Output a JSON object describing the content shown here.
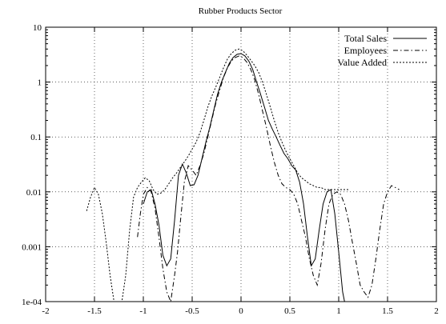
{
  "chart_data": {
    "type": "line",
    "title": "Rubber Products Sector",
    "xlabel": "",
    "ylabel": "",
    "xlim": [
      -2,
      2
    ],
    "ylim": [
      0.0001,
      10
    ],
    "yscale": "log",
    "grid": true,
    "legend_position": "top-right",
    "x_ticks": [
      -2,
      -1.5,
      -1,
      -0.5,
      0,
      0.5,
      1,
      1.5,
      2
    ],
    "x_tick_labels": [
      "-2",
      "-1.5",
      "-1",
      "-0.5",
      "0",
      "0.5",
      "1",
      "1.5",
      "2"
    ],
    "y_ticks": [
      0.0001,
      0.001,
      0.01,
      0.1,
      1,
      10
    ],
    "y_tick_labels": [
      "1e-04",
      "0.001",
      "0.01",
      "0.1",
      "1",
      "10"
    ],
    "series": [
      {
        "name": "Total Sales",
        "style": "solid",
        "x": [
          -1.0,
          -0.96,
          -0.92,
          -0.88,
          -0.84,
          -0.8,
          -0.76,
          -0.72,
          -0.68,
          -0.64,
          -0.6,
          -0.56,
          -0.52,
          -0.48,
          -0.44,
          -0.4,
          -0.36,
          -0.32,
          -0.28,
          -0.24,
          -0.2,
          -0.16,
          -0.12,
          -0.08,
          -0.04,
          0.0,
          0.04,
          0.08,
          0.12,
          0.16,
          0.2,
          0.24,
          0.28,
          0.32,
          0.36,
          0.4,
          0.44,
          0.48,
          0.52,
          0.56,
          0.6,
          0.64,
          0.68,
          0.72,
          0.76,
          0.8,
          0.84,
          0.88,
          0.92,
          0.96,
          1.0,
          1.04,
          1.06
        ],
        "y": [
          0.006,
          0.01,
          0.011,
          0.006,
          0.0025,
          0.0007,
          0.00045,
          0.0006,
          0.003,
          0.02,
          0.032,
          0.022,
          0.013,
          0.0135,
          0.02,
          0.04,
          0.08,
          0.15,
          0.3,
          0.6,
          1.0,
          1.5,
          2.2,
          2.8,
          3.2,
          3.3,
          3.0,
          2.4,
          1.7,
          1.0,
          0.6,
          0.35,
          0.2,
          0.14,
          0.1,
          0.07,
          0.05,
          0.04,
          0.03,
          0.025,
          0.015,
          0.006,
          0.0015,
          0.00045,
          0.0006,
          0.002,
          0.006,
          0.01,
          0.011,
          0.004,
          0.0008,
          0.00015,
          0.0001
        ]
      },
      {
        "name": "Employees",
        "style": "dashdot",
        "x": [
          -1.06,
          -1.03,
          -1.0,
          -0.96,
          -0.92,
          -0.88,
          -0.84,
          -0.8,
          -0.76,
          -0.72,
          -0.68,
          -0.65,
          -0.62,
          -0.58,
          -0.54,
          -0.5,
          -0.46,
          -0.42,
          -0.38,
          -0.34,
          -0.3,
          -0.26,
          -0.22,
          -0.18,
          -0.14,
          -0.1,
          -0.06,
          -0.02,
          0.02,
          0.06,
          0.1,
          0.14,
          0.18,
          0.22,
          0.26,
          0.3,
          0.34,
          0.38,
          0.42,
          0.46,
          0.5,
          0.54,
          0.58,
          0.62,
          0.66,
          0.7,
          0.74,
          0.78,
          0.82,
          0.86,
          0.9,
          0.94,
          0.98,
          1.02,
          1.06,
          1.1,
          1.14,
          1.18,
          1.22,
          1.26,
          1.3,
          1.34,
          1.38,
          1.42,
          1.46,
          1.5,
          1.54,
          1.58,
          1.62
        ],
        "y": [
          0.0015,
          0.004,
          0.009,
          0.012,
          0.01,
          0.005,
          0.0015,
          0.0004,
          0.00015,
          0.0001,
          0.0003,
          0.0008,
          0.003,
          0.015,
          0.03,
          0.025,
          0.02,
          0.03,
          0.05,
          0.1,
          0.2,
          0.4,
          0.7,
          1.2,
          1.8,
          2.4,
          2.8,
          3.0,
          2.8,
          2.3,
          1.7,
          1.1,
          0.6,
          0.3,
          0.15,
          0.07,
          0.035,
          0.02,
          0.014,
          0.012,
          0.011,
          0.009,
          0.006,
          0.003,
          0.0015,
          0.0006,
          0.0003,
          0.0002,
          0.0005,
          0.002,
          0.006,
          0.009,
          0.01,
          0.009,
          0.006,
          0.003,
          0.0012,
          0.0005,
          0.0002,
          0.00015,
          0.00012,
          0.0002,
          0.0006,
          0.002,
          0.006,
          0.01,
          0.013,
          0.012,
          0.011
        ]
      },
      {
        "name": "Value Added",
        "style": "dotted",
        "x": [
          -1.58,
          -1.54,
          -1.5,
          -1.46,
          -1.42,
          -1.38,
          -1.34,
          -1.3,
          -1.26,
          -1.22,
          -1.18,
          -1.14,
          -1.1,
          -1.06,
          -1.02,
          -0.98,
          -0.94,
          -0.9,
          -0.86,
          -0.82,
          -0.78,
          -0.74,
          -0.7,
          -0.66,
          -0.62,
          -0.58,
          -0.54,
          -0.5,
          -0.46,
          -0.42,
          -0.38,
          -0.34,
          -0.3,
          -0.26,
          -0.22,
          -0.18,
          -0.14,
          -0.1,
          -0.06,
          -0.02,
          0.02,
          0.06,
          0.1,
          0.14,
          0.18,
          0.22,
          0.26,
          0.3,
          0.34,
          0.38,
          0.42,
          0.46,
          0.5,
          0.54,
          0.58,
          0.62,
          0.66,
          0.7,
          0.74,
          0.78,
          0.82,
          0.86,
          0.9,
          0.94,
          0.98,
          1.02,
          1.06,
          1.1
        ],
        "y": [
          0.0045,
          0.008,
          0.012,
          0.009,
          0.004,
          0.0012,
          0.0003,
          0.0001,
          0.0001,
          0.0001,
          0.0003,
          0.002,
          0.008,
          0.012,
          0.015,
          0.018,
          0.016,
          0.011,
          0.009,
          0.0095,
          0.011,
          0.014,
          0.018,
          0.022,
          0.028,
          0.035,
          0.045,
          0.06,
          0.08,
          0.12,
          0.2,
          0.35,
          0.55,
          0.8,
          1.2,
          1.8,
          2.6,
          3.3,
          3.8,
          4.0,
          3.7,
          3.1,
          2.5,
          2.0,
          1.5,
          1.0,
          0.6,
          0.35,
          0.2,
          0.12,
          0.08,
          0.055,
          0.04,
          0.03,
          0.022,
          0.018,
          0.016,
          0.014,
          0.013,
          0.012,
          0.012,
          0.011,
          0.011,
          0.011,
          0.011,
          0.011,
          0.011,
          0.011
        ]
      }
    ]
  }
}
